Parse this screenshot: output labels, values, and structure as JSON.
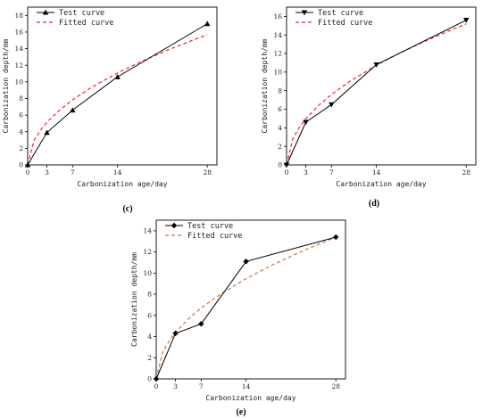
{
  "chart_data": [
    {
      "type": "line",
      "panel_label": "(c)",
      "xlabel": "Carbonization age/day",
      "ylabel": "Carbonization depth/mm",
      "x_ticks": [
        0,
        3,
        7,
        14,
        28
      ],
      "y_ticks": [
        0,
        2,
        4,
        6,
        8,
        10,
        12,
        14,
        16,
        18
      ],
      "xlim": [
        0,
        29.5
      ],
      "ylim": [
        0,
        19
      ],
      "legend_position": "top-left",
      "series": [
        {
          "name": "Test curve",
          "style": "solid",
          "marker": "triangle-up",
          "color": "#000000",
          "x": [
            0,
            3,
            7,
            14,
            28
          ],
          "y": [
            0,
            3.9,
            6.6,
            10.6,
            17.0
          ]
        },
        {
          "name": "Fitted curve",
          "style": "dashed",
          "color": "#e8262b",
          "x": [
            0,
            1,
            2,
            3,
            5,
            7,
            10,
            14,
            18,
            22,
            26,
            28
          ],
          "y": [
            0,
            2.96,
            4.19,
            5.13,
            6.62,
            7.83,
            9.36,
            11.07,
            12.56,
            13.89,
            15.1,
            15.67
          ]
        }
      ]
    },
    {
      "type": "line",
      "panel_label": "(d)",
      "xlabel": "Carbonization age/day",
      "ylabel": "Carbonization depth/mm",
      "x_ticks": [
        0,
        3,
        7,
        14,
        28
      ],
      "y_ticks": [
        0,
        2,
        4,
        6,
        8,
        10,
        12,
        14,
        16
      ],
      "xlim": [
        0,
        29.5
      ],
      "ylim": [
        0,
        17
      ],
      "legend_position": "top-left",
      "series": [
        {
          "name": "Test curve",
          "style": "solid",
          "marker": "triangle-down",
          "color": "#000000",
          "x": [
            0,
            3,
            7,
            14,
            28
          ],
          "y": [
            0,
            4.6,
            6.5,
            10.8,
            15.6
          ]
        },
        {
          "name": "Fitted curve",
          "style": "dashed",
          "color": "#e8262b",
          "x": [
            0,
            1,
            2,
            3,
            5,
            7,
            10,
            14,
            18,
            22,
            26,
            28
          ],
          "y": [
            0,
            2.87,
            4.06,
            4.97,
            6.42,
            7.59,
            9.07,
            10.74,
            12.18,
            13.46,
            14.64,
            15.19
          ]
        }
      ]
    },
    {
      "type": "line",
      "panel_label": "(e)",
      "xlabel": "Carbonization age/day",
      "ylabel": "Carbonization depth/mm",
      "x_ticks": [
        0,
        3,
        7,
        14,
        28
      ],
      "y_ticks": [
        0,
        2,
        4,
        6,
        8,
        10,
        12,
        14
      ],
      "xlim": [
        0,
        29.5
      ],
      "ylim": [
        0,
        15
      ],
      "legend_position": "top-left",
      "series": [
        {
          "name": "Test curve",
          "style": "solid",
          "marker": "diamond",
          "color": "#000000",
          "x": [
            0,
            3,
            7,
            14,
            28
          ],
          "y": [
            0,
            4.3,
            5.2,
            11.1,
            13.4
          ]
        },
        {
          "name": "Fitted curve",
          "style": "dashed",
          "color": "#c8753a",
          "x": [
            0,
            1,
            2,
            3,
            5,
            7,
            10,
            14,
            18,
            22,
            26,
            28
          ],
          "y": [
            0,
            2.53,
            3.58,
            4.39,
            5.66,
            6.7,
            8.0,
            9.47,
            10.74,
            11.87,
            12.91,
            13.4
          ]
        }
      ]
    }
  ]
}
